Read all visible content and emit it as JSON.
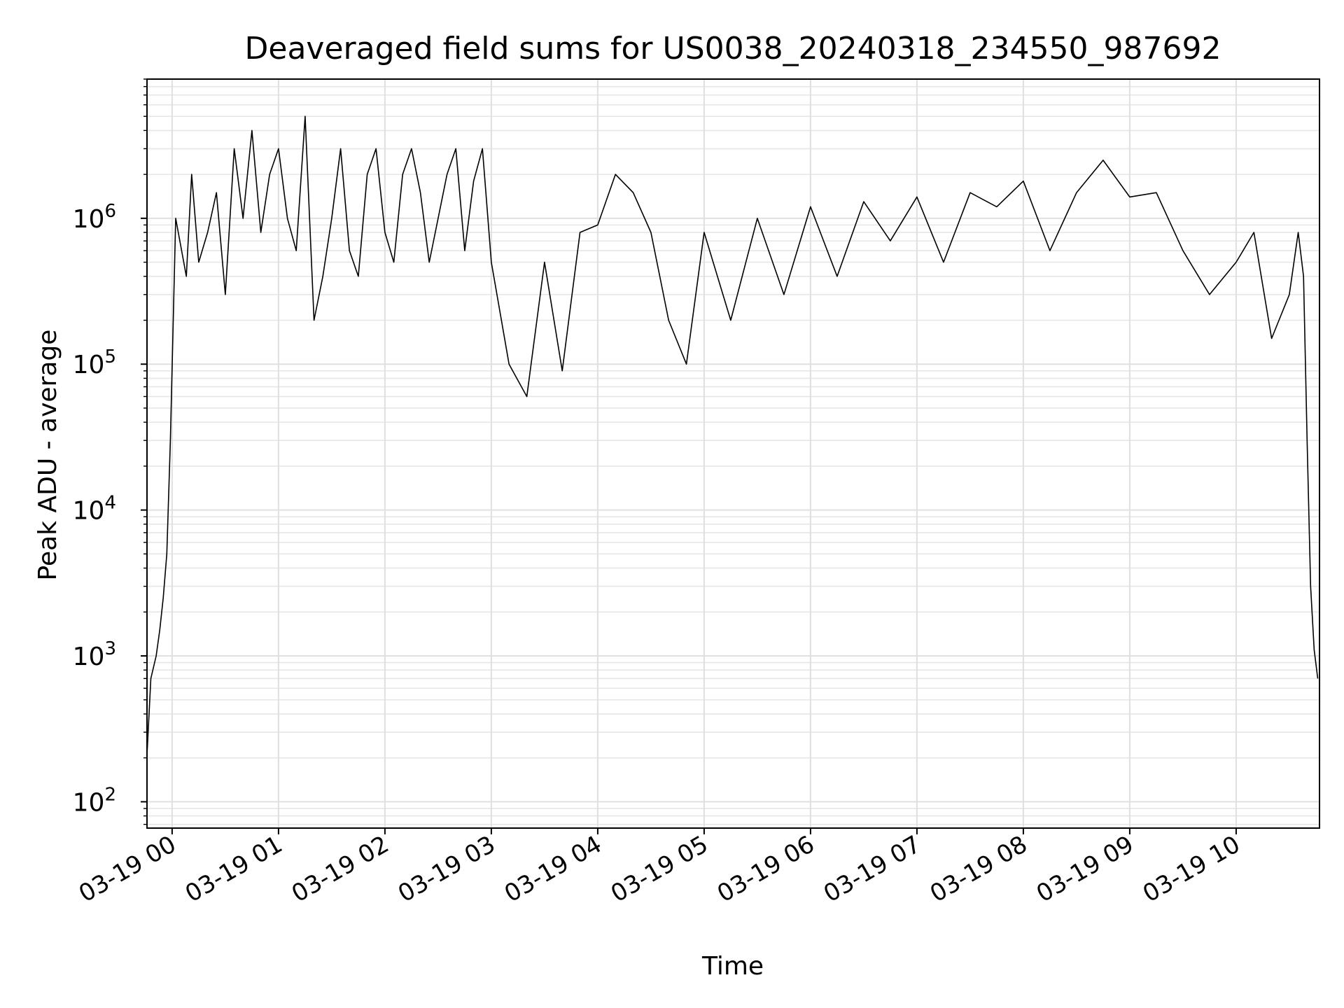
{
  "chart_data": {
    "type": "line",
    "title": "Deaveraged field sums for US0038_20240318_234550_987692",
    "xlabel": "Time",
    "ylabel": "Peak ADU - average",
    "yscale": "log",
    "ylim": [
      66,
      9000000
    ],
    "xlim": [
      "2024-03-18 23:45:50",
      "2024-03-19 10:47:00"
    ],
    "grid": true,
    "line_color": "#000000",
    "x_ticks": [
      "2024-03-19 00:00",
      "2024-03-19 01:00",
      "2024-03-19 02:00",
      "2024-03-19 03:00",
      "2024-03-19 04:00",
      "2024-03-19 05:00",
      "2024-03-19 06:00",
      "2024-03-19 07:00",
      "2024-03-19 08:00",
      "2024-03-19 09:00",
      "2024-03-19 10:00"
    ],
    "x_tick_labels": [
      "03-19 00",
      "03-19 01",
      "03-19 02",
      "03-19 03",
      "03-19 04",
      "03-19 05",
      "03-19 06",
      "03-19 07",
      "03-19 08",
      "03-19 09",
      "03-19 10"
    ],
    "y_ticks": [
      100,
      1000,
      10000,
      100000,
      1000000
    ],
    "y_tick_labels": [
      {
        "base": "10",
        "exp": "2"
      },
      {
        "base": "10",
        "exp": "3"
      },
      {
        "base": "10",
        "exp": "4"
      },
      {
        "base": "10",
        "exp": "5"
      },
      {
        "base": "10",
        "exp": "6"
      }
    ],
    "series": [
      {
        "x": [
          "2024-03-18 23:45:50",
          "2024-03-18 23:48:00",
          "2024-03-18 23:51:00",
          "2024-03-18 23:53:00",
          "2024-03-18 23:55:00",
          "2024-03-18 23:57:00",
          "2024-03-18 23:59:00",
          "2024-03-19 00:02:00",
          "2024-03-19 00:08:00",
          "2024-03-19 00:11:00",
          "2024-03-19 00:15:00",
          "2024-03-19 00:20:00",
          "2024-03-19 00:25:00",
          "2024-03-19 00:30:00",
          "2024-03-19 00:35:00",
          "2024-03-19 00:40:00",
          "2024-03-19 00:45:00",
          "2024-03-19 00:50:00",
          "2024-03-19 00:55:00",
          "2024-03-19 01:00:00",
          "2024-03-19 01:05:00",
          "2024-03-19 01:10:00",
          "2024-03-19 01:15:00",
          "2024-03-19 01:20:00",
          "2024-03-19 01:25:00",
          "2024-03-19 01:30:00",
          "2024-03-19 01:35:00",
          "2024-03-19 01:40:00",
          "2024-03-19 01:45:00",
          "2024-03-19 01:50:00",
          "2024-03-19 01:55:00",
          "2024-03-19 02:00:00",
          "2024-03-19 02:05:00",
          "2024-03-19 02:10:00",
          "2024-03-19 02:15:00",
          "2024-03-19 02:20:00",
          "2024-03-19 02:25:00",
          "2024-03-19 02:30:00",
          "2024-03-19 02:35:00",
          "2024-03-19 02:40:00",
          "2024-03-19 02:45:00",
          "2024-03-19 02:50:00",
          "2024-03-19 02:55:00",
          "2024-03-19 03:00:00",
          "2024-03-19 03:10:00",
          "2024-03-19 03:20:00",
          "2024-03-19 03:30:00",
          "2024-03-19 03:40:00",
          "2024-03-19 03:50:00",
          "2024-03-19 04:00:00",
          "2024-03-19 04:10:00",
          "2024-03-19 04:20:00",
          "2024-03-19 04:30:00",
          "2024-03-19 04:40:00",
          "2024-03-19 04:50:00",
          "2024-03-19 05:00:00",
          "2024-03-19 05:15:00",
          "2024-03-19 05:30:00",
          "2024-03-19 05:45:00",
          "2024-03-19 06:00:00",
          "2024-03-19 06:15:00",
          "2024-03-19 06:30:00",
          "2024-03-19 06:45:00",
          "2024-03-19 07:00:00",
          "2024-03-19 07:15:00",
          "2024-03-19 07:30:00",
          "2024-03-19 07:45:00",
          "2024-03-19 08:00:00",
          "2024-03-19 08:15:00",
          "2024-03-19 08:30:00",
          "2024-03-19 08:45:00",
          "2024-03-19 09:00:00",
          "2024-03-19 09:15:00",
          "2024-03-19 09:30:00",
          "2024-03-19 09:45:00",
          "2024-03-19 10:00:00",
          "2024-03-19 10:10:00",
          "2024-03-19 10:20:00",
          "2024-03-19 10:30:00",
          "2024-03-19 10:35:00",
          "2024-03-19 10:38:00",
          "2024-03-19 10:40:00",
          "2024-03-19 10:42:00",
          "2024-03-19 10:44:00",
          "2024-03-19 10:46:00"
        ],
        "y": [
          210,
          700,
          1000,
          1500,
          2500,
          5000,
          30000,
          1000000,
          400000,
          2000000,
          500000,
          800000,
          1500000,
          300000,
          3000000,
          1000000,
          4000000,
          800000,
          2000000,
          3000000,
          1000000,
          600000,
          5000000,
          200000,
          400000,
          1000000,
          3000000,
          600000,
          400000,
          2000000,
          3000000,
          800000,
          500000,
          2000000,
          3000000,
          1500000,
          500000,
          1000000,
          2000000,
          3000000,
          600000,
          1800000,
          3000000,
          500000,
          100000,
          60000,
          500000,
          90000,
          800000,
          900000,
          2000000,
          1500000,
          800000,
          200000,
          100000,
          800000,
          200000,
          1000000,
          300000,
          1200000,
          400000,
          1300000,
          700000,
          1400000,
          500000,
          1500000,
          1200000,
          1800000,
          600000,
          1500000,
          2500000,
          1400000,
          1500000,
          600000,
          300000,
          500000,
          800000,
          150000,
          300000,
          800000,
          400000,
          30000,
          3000,
          1100,
          700
        ]
      }
    ]
  }
}
